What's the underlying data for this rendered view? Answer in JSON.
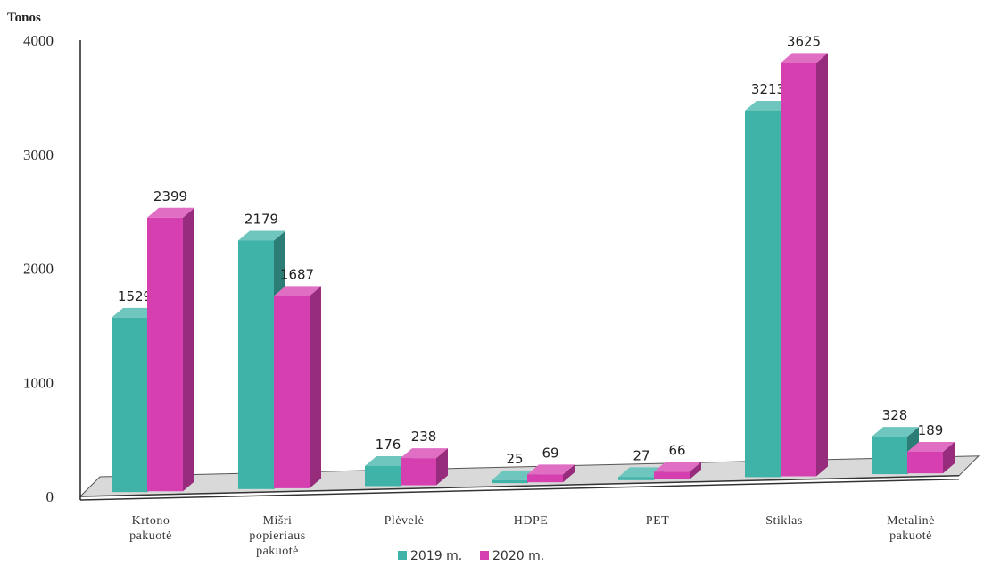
{
  "chart_data": {
    "type": "bar",
    "title": "",
    "ylabel": "Tonos",
    "xlabel": "",
    "ylim": [
      0,
      4000
    ],
    "yticks": [
      0,
      1000,
      2000,
      3000,
      4000
    ],
    "categories": [
      [
        "Krtono",
        "pakuotė"
      ],
      [
        "Mišri",
        "popieriaus",
        "pakuotė"
      ],
      [
        "Plėvelė"
      ],
      [
        "HDPE"
      ],
      [
        "PET"
      ],
      [
        "Stiklas"
      ],
      [
        "Metalinė",
        "pakuotė"
      ]
    ],
    "series": [
      {
        "name": "2019 m.",
        "color": "#3fb3a8",
        "values": [
          1529,
          2179,
          176,
          25,
          27,
          3213,
          328
        ]
      },
      {
        "name": "2020 m.",
        "color": "#d63fb0",
        "values": [
          2399,
          1687,
          238,
          69,
          66,
          3625,
          189
        ]
      }
    ],
    "grid": false,
    "legend": "bottom"
  }
}
